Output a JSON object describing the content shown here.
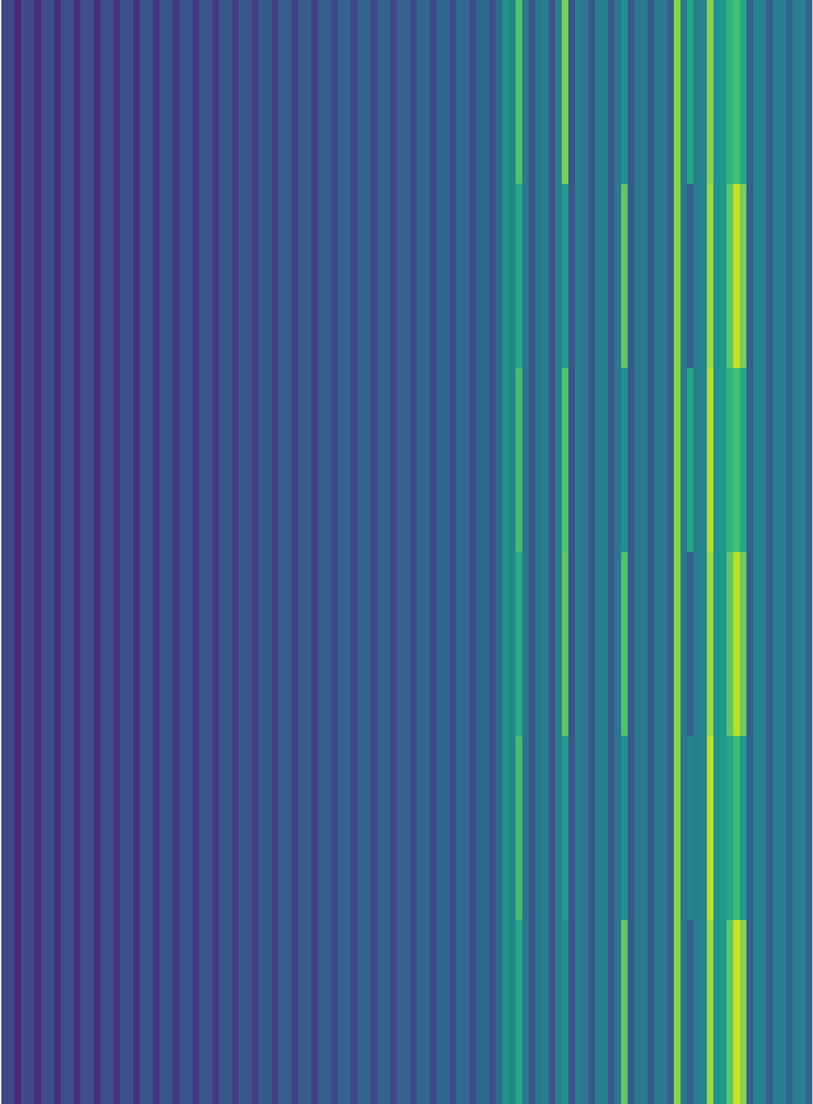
{
  "chart_data": {
    "type": "heatmap",
    "color": "viridis",
    "vlim": [
      0,
      1
    ],
    "tick_labels": false,
    "values": [
      [
        0.22,
        0.22,
        0.12,
        0.225,
        0.225,
        0.125,
        0.23,
        0.23,
        0.13,
        0.235,
        0.235,
        0.135,
        0.24,
        0.24,
        0.14,
        0.245,
        0.245,
        0.145,
        0.25,
        0.25,
        0.15,
        0.255,
        0.255,
        0.155,
        0.26,
        0.26,
        0.16,
        0.265,
        0.265,
        0.165,
        0.27,
        0.27,
        0.17,
        0.275,
        0.275,
        0.175,
        0.28,
        0.28,
        0.18,
        0.285,
        0.285,
        0.185,
        0.29,
        0.29,
        0.19,
        0.295,
        0.295,
        0.195,
        0.3,
        0.3,
        0.2,
        0.305,
        0.305,
        0.205,
        0.31,
        0.31,
        0.21,
        0.315,
        0.315,
        0.215,
        0.32,
        0.32,
        0.22,
        0.325,
        0.325,
        0.225,
        0.33,
        0.33,
        0.23,
        0.335,
        0.335,
        0.235,
        0.34,
        0.34,
        0.24,
        0.345,
        0.5,
        0.45,
        0.72,
        0.4,
        0.25,
        0.4,
        0.42,
        0.26,
        0.42,
        0.8,
        0.26,
        0.42,
        0.4,
        0.27,
        0.42,
        0.43,
        0.27,
        0.4,
        0.5,
        0.28,
        0.4,
        0.4,
        0.28,
        0.4,
        0.41,
        0.29,
        0.82,
        0.4,
        0.6,
        0.42,
        0.45,
        0.82,
        0.5,
        0.55,
        0.65,
        0.7,
        0.6,
        0.3,
        0.45,
        0.42,
        0.3,
        0.42,
        0.42,
        0.31,
        0.42,
        0.42,
        0.32
      ],
      [
        0.22,
        0.22,
        0.12,
        0.225,
        0.225,
        0.125,
        0.23,
        0.23,
        0.13,
        0.235,
        0.235,
        0.135,
        0.24,
        0.24,
        0.14,
        0.245,
        0.245,
        0.145,
        0.25,
        0.25,
        0.15,
        0.255,
        0.255,
        0.155,
        0.26,
        0.26,
        0.16,
        0.265,
        0.265,
        0.165,
        0.27,
        0.27,
        0.17,
        0.275,
        0.275,
        0.175,
        0.28,
        0.28,
        0.18,
        0.285,
        0.285,
        0.185,
        0.29,
        0.29,
        0.19,
        0.295,
        0.295,
        0.195,
        0.3,
        0.3,
        0.2,
        0.305,
        0.305,
        0.205,
        0.31,
        0.31,
        0.21,
        0.315,
        0.315,
        0.215,
        0.32,
        0.32,
        0.22,
        0.325,
        0.325,
        0.225,
        0.33,
        0.33,
        0.23,
        0.335,
        0.335,
        0.235,
        0.34,
        0.34,
        0.24,
        0.345,
        0.5,
        0.45,
        0.6,
        0.4,
        0.25,
        0.4,
        0.42,
        0.26,
        0.42,
        0.55,
        0.26,
        0.42,
        0.4,
        0.27,
        0.42,
        0.43,
        0.27,
        0.4,
        0.75,
        0.28,
        0.4,
        0.4,
        0.28,
        0.4,
        0.41,
        0.29,
        0.82,
        0.4,
        0.3,
        0.42,
        0.45,
        0.85,
        0.5,
        0.55,
        0.75,
        0.92,
        0.8,
        0.3,
        0.45,
        0.42,
        0.3,
        0.42,
        0.42,
        0.31,
        0.42,
        0.42,
        0.32
      ],
      [
        0.22,
        0.22,
        0.12,
        0.225,
        0.225,
        0.125,
        0.23,
        0.23,
        0.13,
        0.235,
        0.235,
        0.135,
        0.24,
        0.24,
        0.14,
        0.245,
        0.245,
        0.145,
        0.25,
        0.25,
        0.15,
        0.255,
        0.255,
        0.155,
        0.26,
        0.26,
        0.16,
        0.265,
        0.265,
        0.165,
        0.27,
        0.27,
        0.17,
        0.275,
        0.275,
        0.175,
        0.28,
        0.28,
        0.18,
        0.285,
        0.285,
        0.185,
        0.29,
        0.29,
        0.19,
        0.295,
        0.295,
        0.195,
        0.3,
        0.3,
        0.2,
        0.305,
        0.305,
        0.205,
        0.31,
        0.31,
        0.21,
        0.315,
        0.315,
        0.215,
        0.32,
        0.32,
        0.22,
        0.325,
        0.325,
        0.225,
        0.33,
        0.33,
        0.23,
        0.335,
        0.335,
        0.235,
        0.34,
        0.34,
        0.24,
        0.345,
        0.5,
        0.45,
        0.7,
        0.4,
        0.25,
        0.4,
        0.42,
        0.26,
        0.42,
        0.72,
        0.26,
        0.42,
        0.4,
        0.27,
        0.42,
        0.43,
        0.27,
        0.4,
        0.5,
        0.28,
        0.4,
        0.4,
        0.28,
        0.4,
        0.41,
        0.29,
        0.82,
        0.4,
        0.6,
        0.42,
        0.45,
        0.88,
        0.5,
        0.55,
        0.65,
        0.7,
        0.6,
        0.3,
        0.45,
        0.42,
        0.3,
        0.42,
        0.42,
        0.31,
        0.42,
        0.42,
        0.32
      ],
      [
        0.22,
        0.22,
        0.12,
        0.225,
        0.225,
        0.125,
        0.23,
        0.23,
        0.13,
        0.235,
        0.235,
        0.135,
        0.24,
        0.24,
        0.14,
        0.245,
        0.245,
        0.145,
        0.25,
        0.25,
        0.15,
        0.255,
        0.255,
        0.155,
        0.26,
        0.26,
        0.16,
        0.265,
        0.265,
        0.165,
        0.27,
        0.27,
        0.17,
        0.275,
        0.275,
        0.175,
        0.28,
        0.28,
        0.18,
        0.285,
        0.285,
        0.185,
        0.29,
        0.29,
        0.19,
        0.295,
        0.295,
        0.195,
        0.3,
        0.3,
        0.2,
        0.305,
        0.305,
        0.205,
        0.31,
        0.31,
        0.21,
        0.315,
        0.315,
        0.215,
        0.32,
        0.32,
        0.22,
        0.325,
        0.325,
        0.225,
        0.33,
        0.33,
        0.23,
        0.335,
        0.335,
        0.235,
        0.34,
        0.34,
        0.24,
        0.345,
        0.5,
        0.45,
        0.62,
        0.4,
        0.25,
        0.4,
        0.42,
        0.26,
        0.42,
        0.75,
        0.26,
        0.42,
        0.4,
        0.27,
        0.42,
        0.43,
        0.27,
        0.4,
        0.72,
        0.28,
        0.4,
        0.4,
        0.28,
        0.4,
        0.41,
        0.29,
        0.82,
        0.4,
        0.3,
        0.42,
        0.45,
        0.85,
        0.5,
        0.55,
        0.75,
        0.9,
        0.78,
        0.3,
        0.45,
        0.42,
        0.3,
        0.42,
        0.42,
        0.31,
        0.42,
        0.42,
        0.32
      ],
      [
        0.22,
        0.22,
        0.12,
        0.225,
        0.225,
        0.125,
        0.23,
        0.23,
        0.13,
        0.235,
        0.235,
        0.135,
        0.24,
        0.24,
        0.14,
        0.245,
        0.245,
        0.145,
        0.25,
        0.25,
        0.15,
        0.255,
        0.255,
        0.155,
        0.26,
        0.26,
        0.16,
        0.265,
        0.265,
        0.165,
        0.27,
        0.27,
        0.17,
        0.275,
        0.275,
        0.175,
        0.28,
        0.28,
        0.18,
        0.285,
        0.285,
        0.185,
        0.29,
        0.29,
        0.19,
        0.295,
        0.295,
        0.195,
        0.3,
        0.3,
        0.2,
        0.305,
        0.305,
        0.205,
        0.31,
        0.31,
        0.21,
        0.315,
        0.315,
        0.215,
        0.32,
        0.32,
        0.22,
        0.325,
        0.325,
        0.225,
        0.33,
        0.33,
        0.23,
        0.335,
        0.335,
        0.235,
        0.34,
        0.34,
        0.24,
        0.345,
        0.5,
        0.45,
        0.7,
        0.4,
        0.25,
        0.4,
        0.42,
        0.26,
        0.42,
        0.55,
        0.26,
        0.42,
        0.4,
        0.27,
        0.42,
        0.43,
        0.27,
        0.4,
        0.5,
        0.28,
        0.4,
        0.4,
        0.28,
        0.4,
        0.41,
        0.29,
        0.82,
        0.4,
        0.45,
        0.42,
        0.45,
        0.9,
        0.5,
        0.55,
        0.6,
        0.68,
        0.55,
        0.3,
        0.45,
        0.42,
        0.3,
        0.42,
        0.42,
        0.31,
        0.42,
        0.42,
        0.32
      ],
      [
        0.22,
        0.22,
        0.12,
        0.225,
        0.225,
        0.125,
        0.23,
        0.23,
        0.13,
        0.235,
        0.235,
        0.135,
        0.24,
        0.24,
        0.14,
        0.245,
        0.245,
        0.145,
        0.25,
        0.25,
        0.15,
        0.255,
        0.255,
        0.155,
        0.26,
        0.26,
        0.16,
        0.265,
        0.265,
        0.165,
        0.27,
        0.27,
        0.17,
        0.275,
        0.275,
        0.175,
        0.28,
        0.28,
        0.18,
        0.285,
        0.285,
        0.185,
        0.29,
        0.29,
        0.19,
        0.295,
        0.295,
        0.195,
        0.3,
        0.3,
        0.2,
        0.305,
        0.305,
        0.205,
        0.31,
        0.31,
        0.21,
        0.315,
        0.315,
        0.215,
        0.32,
        0.32,
        0.22,
        0.325,
        0.325,
        0.225,
        0.33,
        0.33,
        0.23,
        0.335,
        0.335,
        0.235,
        0.34,
        0.34,
        0.24,
        0.345,
        0.5,
        0.45,
        0.6,
        0.4,
        0.25,
        0.4,
        0.42,
        0.26,
        0.42,
        0.5,
        0.26,
        0.42,
        0.4,
        0.27,
        0.42,
        0.43,
        0.27,
        0.4,
        0.75,
        0.28,
        0.4,
        0.4,
        0.28,
        0.4,
        0.41,
        0.29,
        0.82,
        0.4,
        0.3,
        0.42,
        0.45,
        0.85,
        0.5,
        0.55,
        0.75,
        0.93,
        0.82,
        0.3,
        0.45,
        0.42,
        0.3,
        0.42,
        0.42,
        0.31,
        0.42,
        0.42,
        0.32
      ]
    ]
  }
}
